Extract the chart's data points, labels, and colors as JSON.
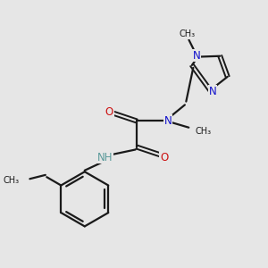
{
  "background_color": "#e6e6e6",
  "bond_color": "#1a1a1a",
  "N_color": "#1111cc",
  "O_color": "#cc1111",
  "H_color": "#5a9a9a",
  "figsize": [
    3.0,
    3.0
  ],
  "dpi": 100,
  "xlim": [
    0,
    10
  ],
  "ylim": [
    0,
    10
  ],
  "bond_lw": 1.6,
  "font_size": 8.5,
  "font_size_small": 7.5
}
